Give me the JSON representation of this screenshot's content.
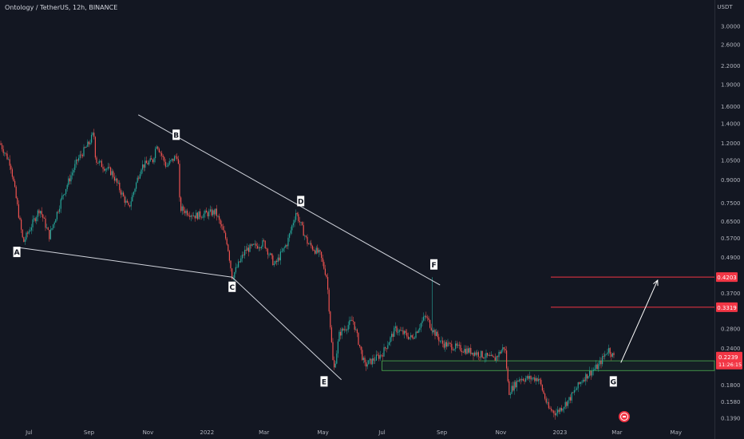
{
  "title": "Ontology / TetherUS, 12h, BINANCE",
  "currency": "USDT",
  "chart_data": {
    "type": "candlestick",
    "title": "Ontology / TetherUS, 12h, BINANCE",
    "symbol": "ONT/USDT",
    "timeframe": "12h",
    "exchange": "BINANCE",
    "scale": "log",
    "ylim": [
      0.13,
      4.0
    ],
    "y_ticks": [
      "3.0000",
      "2.6000",
      "2.2000",
      "1.9000",
      "1.6000",
      "1.4000",
      "1.2000",
      "1.0500",
      "0.9000",
      "0.7500",
      "0.6500",
      "0.5700",
      "0.4900",
      "0.3700",
      "0.2800",
      "0.2400",
      "0.1800",
      "0.1580",
      "0.1390"
    ],
    "x_ticks": [
      "Jul",
      "Sep",
      "Nov",
      "2022",
      "Mar",
      "May",
      "Jul",
      "Sep",
      "Nov",
      "2023",
      "Mar",
      "May"
    ],
    "x_range": [
      "2021-06-01",
      "2023-06-04"
    ],
    "grid": false,
    "price_path": [
      [
        "2021-06-01",
        1.2
      ],
      [
        "2021-06-12",
        1.02
      ],
      [
        "2021-06-25",
        0.55
      ],
      [
        "2021-07-12",
        0.72
      ],
      [
        "2021-07-22",
        0.58
      ],
      [
        "2021-08-05",
        0.8
      ],
      [
        "2021-08-20",
        1.05
      ],
      [
        "2021-09-01",
        1.2
      ],
      [
        "2021-09-06",
        1.3
      ],
      [
        "2021-09-08",
        1.05
      ],
      [
        "2021-09-25",
        0.95
      ],
      [
        "2021-10-12",
        0.72
      ],
      [
        "2021-10-25",
        1.0
      ],
      [
        "2021-11-06",
        1.05
      ],
      [
        "2021-11-10",
        1.2
      ],
      [
        "2021-11-20",
        1.0
      ],
      [
        "2021-12-02",
        1.1
      ],
      [
        "2021-12-04",
        0.72
      ],
      [
        "2021-12-20",
        0.68
      ],
      [
        "2022-01-10",
        0.7
      ],
      [
        "2022-01-22",
        0.55
      ],
      [
        "2022-01-27",
        0.42
      ],
      [
        "2022-02-10",
        0.52
      ],
      [
        "2022-03-01",
        0.55
      ],
      [
        "2022-03-12",
        0.46
      ],
      [
        "2022-03-25",
        0.55
      ],
      [
        "2022-04-03",
        0.7
      ],
      [
        "2022-04-15",
        0.55
      ],
      [
        "2022-04-28",
        0.5
      ],
      [
        "2022-05-05",
        0.42
      ],
      [
        "2022-05-12",
        0.2
      ],
      [
        "2022-05-18",
        0.27
      ],
      [
        "2022-06-01",
        0.3
      ],
      [
        "2022-06-13",
        0.21
      ],
      [
        "2022-07-01",
        0.23
      ],
      [
        "2022-07-15",
        0.28
      ],
      [
        "2022-08-01",
        0.26
      ],
      [
        "2022-08-15",
        0.31
      ],
      [
        "2022-08-22",
        0.28
      ],
      [
        "2022-09-01",
        0.25
      ],
      [
        "2022-09-20",
        0.24
      ],
      [
        "2022-10-10",
        0.23
      ],
      [
        "2022-10-25",
        0.22
      ],
      [
        "2022-11-05",
        0.245
      ],
      [
        "2022-11-09",
        0.17
      ],
      [
        "2022-11-20",
        0.19
      ],
      [
        "2022-12-10",
        0.19
      ],
      [
        "2022-12-20",
        0.15
      ],
      [
        "2022-12-28",
        0.145
      ],
      [
        "2023-01-10",
        0.16
      ],
      [
        "2023-01-25",
        0.19
      ],
      [
        "2023-02-10",
        0.21
      ],
      [
        "2023-02-20",
        0.24
      ],
      [
        "2023-02-26",
        0.2239
      ]
    ],
    "last_price": "0.2239",
    "countdown": "11:26:15",
    "horizontal_levels": [
      {
        "label": "0.4203",
        "value": 0.4203,
        "color": "#f23645"
      },
      {
        "label": "0.3319",
        "value": 0.3319,
        "color": "#f23645"
      }
    ],
    "support_zone": {
      "from": "2022-07-01",
      "upper": 0.218,
      "lower": 0.202,
      "color": "#4caf50"
    },
    "points": [
      {
        "label": "A",
        "date": "2021-06-25",
        "price": 0.545
      },
      {
        "label": "B",
        "date": "2021-11-12",
        "price": 1.22
      },
      {
        "label": "C",
        "date": "2022-01-27",
        "price": 0.42
      },
      {
        "label": "D",
        "date": "2022-04-03",
        "price": 0.69
      },
      {
        "label": "E",
        "date": "2022-05-12",
        "price": 0.2
      },
      {
        "label": "F",
        "date": "2022-08-22",
        "price": 0.42
      },
      {
        "label": "G",
        "date": "2023-02-26",
        "price": 0.2
      }
    ],
    "trendlines": [
      {
        "from": [
          "2021-06-20",
          0.53
        ],
        "to": [
          "2022-01-27",
          0.42
        ]
      },
      {
        "from": [
          "2021-10-22",
          1.5
        ],
        "to": [
          "2022-08-30",
          0.395
        ]
      },
      {
        "from": [
          "2022-01-27",
          0.42
        ],
        "to": [
          "2022-05-20",
          0.188
        ]
      }
    ],
    "projection_arrow": {
      "from": [
        "2023-03-05",
        0.215
      ],
      "to": [
        "2023-04-12",
        0.41
      ]
    }
  },
  "colors": {
    "background": "#131722",
    "up": "#26a69a",
    "down": "#ef5350",
    "text": "#b2b5be",
    "line": "#d1d4dc",
    "level": "#f23645",
    "zone": "#4caf50",
    "price_tag": "#f23645"
  }
}
